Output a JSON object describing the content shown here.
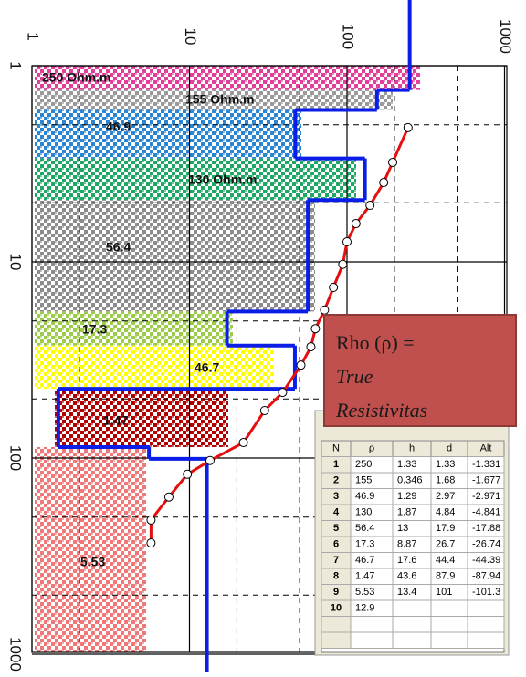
{
  "x_axis": {
    "ticks": [
      1,
      10,
      100,
      1000
    ]
  },
  "y_axis": {
    "ticks": [
      1,
      10,
      100,
      1000
    ]
  },
  "layers": [
    {
      "label": "250 Ohm.m",
      "color": "#e0409a"
    },
    {
      "label": "155 Ohm.m",
      "color": "#9a9a9a"
    },
    {
      "label": "46.9",
      "color": "#2a86d4"
    },
    {
      "label": "130 Ohm.m",
      "color": "#1fa863"
    },
    {
      "label": "56.4",
      "color": "#8c8c8c"
    },
    {
      "label": "17.3",
      "color": "#9ccc4a"
    },
    {
      "label": "46.7",
      "color": "#ffff00"
    },
    {
      "label": "1.47",
      "color": "#b00000"
    },
    {
      "label": "5.53",
      "color": "#f07878"
    }
  ],
  "sounding": {
    "ab2": [
      2.07,
      3.11,
      3.94,
      5.15,
      6.38,
      7.9,
      10.3,
      13.5,
      17.6,
      21.9,
      27.1,
      33.6,
      46.3,
      57.3,
      83.4,
      103,
      121,
      158,
      207,
      271
    ],
    "rho": [
      244,
      195,
      171,
      140,
      114,
      100,
      94,
      82,
      72,
      63,
      59,
      51,
      39,
      30,
      22,
      13.5,
      9.7,
      7.4,
      5.7,
      5.7
    ]
  },
  "annotation": {
    "line1": "Rho (ρ) =",
    "line2": "True",
    "line3": "Resistivitas"
  },
  "table": {
    "header": [
      "N",
      "ρ",
      "h",
      "d",
      "Alt"
    ],
    "rows": [
      [
        1,
        250,
        1.33,
        1.33,
        -1.331
      ],
      [
        2,
        155,
        0.346,
        1.68,
        -1.677
      ],
      [
        3,
        46.9,
        1.29,
        2.97,
        -2.971
      ],
      [
        4,
        130,
        1.87,
        4.84,
        -4.841
      ],
      [
        5,
        56.4,
        13,
        17.9,
        -17.88
      ],
      [
        6,
        17.3,
        8.87,
        26.7,
        -26.74
      ],
      [
        7,
        46.7,
        17.6,
        44.4,
        -44.39
      ],
      [
        8,
        1.47,
        43.6,
        87.9,
        -87.94
      ],
      [
        9,
        5.53,
        13.4,
        101,
        -101.3
      ],
      [
        10,
        12.9
      ]
    ]
  }
}
